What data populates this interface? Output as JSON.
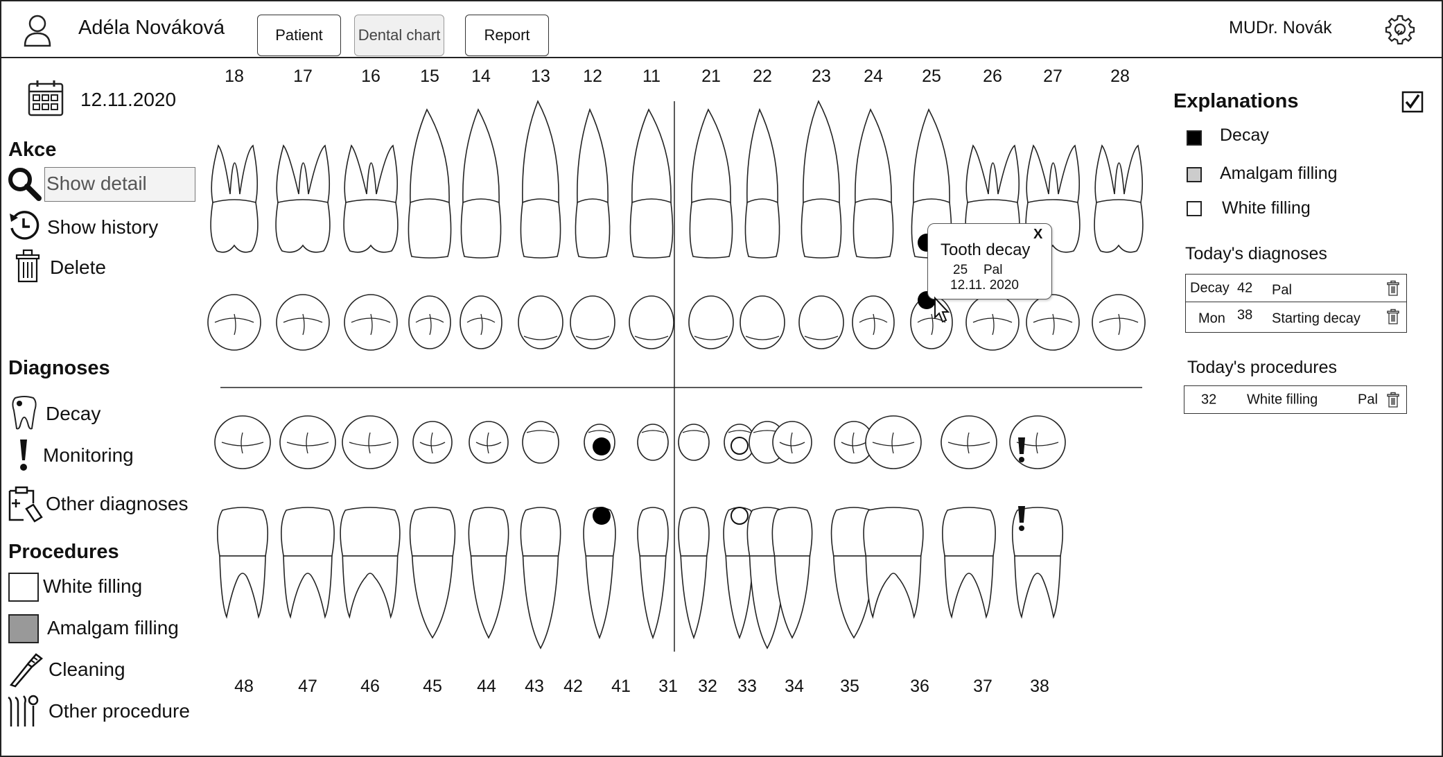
{
  "patient": {
    "name": "Adéla Nováková"
  },
  "tabs": [
    {
      "label": "Patient",
      "active": false
    },
    {
      "label": "Dental chart",
      "active": true
    },
    {
      "label": "Report",
      "active": false
    }
  ],
  "user": {
    "name": "MUDr. Novák"
  },
  "date": "12.11.2020",
  "actions": {
    "title": "Akce",
    "show_detail": "Show detail",
    "show_history": "Show history",
    "delete": "Delete"
  },
  "diagnoses": {
    "title": "Diagnoses",
    "decay": "Decay",
    "monitoring": "Monitoring",
    "other": "Other diagnoses"
  },
  "procedures": {
    "title": "Procedures",
    "white_filling": "White filling",
    "amalgam_filling": "Amalgam filling",
    "cleaning": "Cleaning",
    "other": "Other procedure"
  },
  "teeth": {
    "upper": [
      "18",
      "17",
      "16",
      "15",
      "14",
      "13",
      "12",
      "11",
      "21",
      "22",
      "23",
      "24",
      "25",
      "26",
      "27",
      "28"
    ],
    "lower": [
      "48",
      "47",
      "46",
      "45",
      "44",
      "43",
      "42",
      "41",
      "31",
      "32",
      "33",
      "34",
      "35",
      "36",
      "37",
      "38"
    ]
  },
  "tooltip": {
    "title": "Tooth decay",
    "tooth": "25",
    "surface": "Pal",
    "date": "12.11. 2020",
    "close": "X"
  },
  "explanations": {
    "title": "Explanations",
    "checked": true,
    "items": [
      {
        "label": "Decay",
        "color": "#000000"
      },
      {
        "label": "Amalgam filling",
        "color": "#cccccc"
      },
      {
        "label": "White filling",
        "color": "#ffffff"
      }
    ]
  },
  "today_diagnoses": {
    "title": "Today's diagnoses",
    "rows": [
      {
        "type": "Decay",
        "tooth": "42",
        "note": "Pal"
      },
      {
        "type": "Mon",
        "tooth": "38",
        "note": "Starting decay"
      }
    ]
  },
  "today_procedures": {
    "title": "Today's procedures",
    "rows": [
      {
        "tooth": "32",
        "procedure": "White filling",
        "note": "Pal"
      }
    ]
  }
}
